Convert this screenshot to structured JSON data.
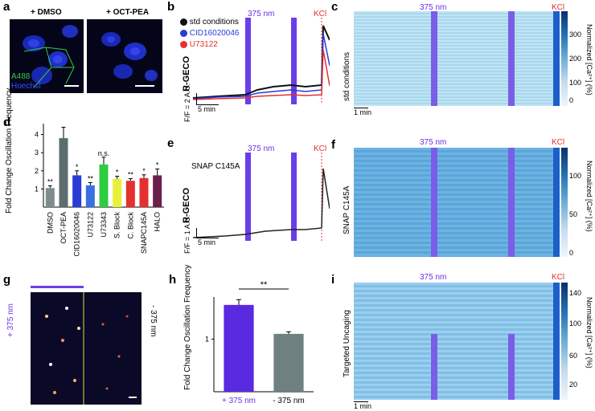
{
  "panels": {
    "a": {
      "label": "a",
      "cond1": "+ DMSO",
      "cond2": "+ OCT-PEA",
      "stain1": "A488",
      "stain2": "Hoechst"
    },
    "b": {
      "label": "b",
      "legend": [
        "std conditions",
        "CID16020046",
        "U73122"
      ],
      "stim": "375 nm",
      "kcl": "KCl",
      "ylabel": "R-GECO",
      "scale_v": "2 A.U.",
      "scale_unit": "F/F",
      "scale_h": "5 min"
    },
    "c": {
      "label": "c",
      "stim": "375 nm",
      "kcl": "KCl",
      "side": "std conditions",
      "scale_h": "1 min",
      "cbar_label": "Normalized [Ca²⁺] (%)",
      "cbar_ticks": [
        "300",
        "200",
        "100",
        "0"
      ]
    },
    "d": {
      "label": "d",
      "ylabel": "Fold Change Oscillation Frequency",
      "ns": "n.s."
    },
    "e": {
      "label": "e",
      "stim": "375 nm",
      "kcl": "KCl",
      "construct": "SNAP C145A",
      "ylabel": "R-GECO",
      "scale_v": "1 A.U.",
      "scale_unit": "F/F",
      "scale_h": "5 min"
    },
    "f": {
      "label": "f",
      "stim": "375 nm",
      "kcl": "KCl",
      "side": "SNAP C145A",
      "cbar_label": "Normalized [Ca²⁺] (%)",
      "cbar_ticks": [
        "100",
        "50",
        "0"
      ]
    },
    "g": {
      "label": "g",
      "left": "+ 375 nm",
      "right": "- 375 nm"
    },
    "h": {
      "label": "h",
      "ylabel": "Fold Change Oscillation Frequency",
      "sig": "**"
    },
    "i": {
      "label": "i",
      "stim": "375 nm",
      "kcl": "KCl",
      "side": "Targeted Uncaging",
      "scale_h": "1 min",
      "cbar_label": "Normalized [Ca²⁺] (%)",
      "cbar_ticks": [
        "140",
        "100",
        "60",
        "20"
      ]
    }
  },
  "chart_data": [
    {
      "type": "bar",
      "panel": "d",
      "categories": [
        "DMSO",
        "OCT-PEA",
        "CID16020046",
        "U73122",
        "U73343",
        "S. Block",
        "C. Block",
        "SNAPC145A",
        "HALO"
      ],
      "values": [
        1.05,
        3.8,
        1.75,
        1.2,
        2.35,
        1.55,
        1.45,
        1.6,
        1.75
      ],
      "errors": [
        0.12,
        0.6,
        0.25,
        0.15,
        0.4,
        0.15,
        0.12,
        0.18,
        0.35
      ],
      "annotations": [
        "**",
        "",
        "*",
        "**",
        "n.s.",
        "*",
        "**",
        "*",
        "*"
      ],
      "colors": [
        "#7f8c8d",
        "#5d6d6e",
        "#2a3bd6",
        "#3a6fe0",
        "#2ecc40",
        "#e8f03a",
        "#e53030",
        "#e53030",
        "#6b1f4a"
      ],
      "ylabel": "Fold Change Oscillation Frequency",
      "yticks": [
        "1",
        "2",
        "3",
        "4"
      ],
      "ylim": [
        0,
        4.6
      ]
    },
    {
      "type": "bar",
      "panel": "h",
      "categories": [
        "+ 375 nm",
        "- 375 nm"
      ],
      "values": [
        1.65,
        1.1
      ],
      "errors": [
        0.1,
        0.04
      ],
      "colors": [
        "#5a2ae0",
        "#6e8080"
      ],
      "ylabel": "Fold Change Oscillation Frequency",
      "yticks": [
        "1"
      ],
      "ylim": [
        0,
        1.8
      ]
    }
  ]
}
